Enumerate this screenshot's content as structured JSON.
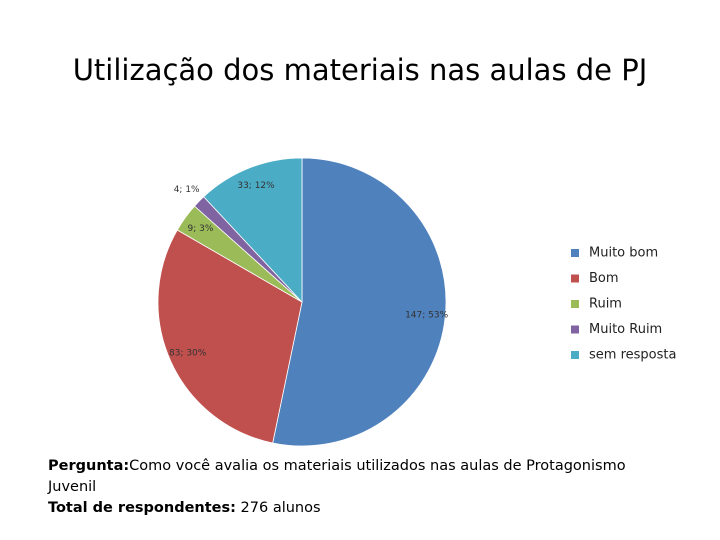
{
  "chart_data": {
    "type": "pie",
    "title": "Utilização dos materiais nas aulas de PJ",
    "categories": [
      "Muito bom",
      "Bom",
      "Ruim",
      "Muito Ruim",
      "sem resposta"
    ],
    "values": [
      147,
      83,
      9,
      4,
      33
    ],
    "value_labels": [
      "147; 53%",
      "83; 30%",
      "9; 3%",
      "4; 1%",
      "33; 12%"
    ],
    "colors": [
      "#4f81bd",
      "#c0504d",
      "#9bbb59",
      "#8064a2",
      "#4bacc6"
    ],
    "legend": "right"
  },
  "footer": {
    "question_label": "Pergunta:",
    "question": "Como você avalia os materiais utilizados nas aulas de Protagonismo Juvenil",
    "total_label": "Total de respondentes:",
    "total": "276 alunos"
  }
}
